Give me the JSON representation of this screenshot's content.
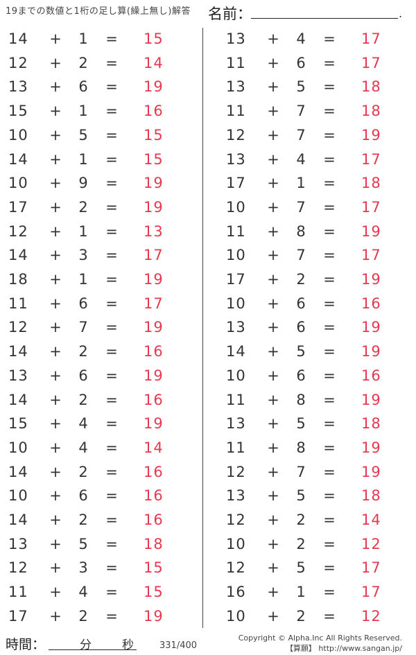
{
  "header": {
    "title": "19までの数値と1桁の足し算(繰上無し)解答",
    "name_label": "名前：",
    "name_dot": "."
  },
  "operator": "+",
  "equals": "=",
  "colors": {
    "answer": "#e8384f"
  },
  "left": [
    [
      "14",
      "1",
      "15"
    ],
    [
      "12",
      "2",
      "14"
    ],
    [
      "13",
      "6",
      "19"
    ],
    [
      "15",
      "1",
      "16"
    ],
    [
      "10",
      "5",
      "15"
    ],
    [
      "14",
      "1",
      "15"
    ],
    [
      "10",
      "9",
      "19"
    ],
    [
      "17",
      "2",
      "19"
    ],
    [
      "12",
      "1",
      "13"
    ],
    [
      "14",
      "3",
      "17"
    ],
    [
      "18",
      "1",
      "19"
    ],
    [
      "11",
      "6",
      "17"
    ],
    [
      "12",
      "7",
      "19"
    ],
    [
      "14",
      "2",
      "16"
    ],
    [
      "13",
      "6",
      "19"
    ],
    [
      "14",
      "2",
      "16"
    ],
    [
      "15",
      "4",
      "19"
    ],
    [
      "10",
      "4",
      "14"
    ],
    [
      "14",
      "2",
      "16"
    ],
    [
      "10",
      "6",
      "16"
    ],
    [
      "14",
      "2",
      "16"
    ],
    [
      "13",
      "5",
      "18"
    ],
    [
      "12",
      "3",
      "15"
    ],
    [
      "11",
      "4",
      "15"
    ],
    [
      "17",
      "2",
      "19"
    ]
  ],
  "right": [
    [
      "13",
      "4",
      "17"
    ],
    [
      "11",
      "6",
      "17"
    ],
    [
      "13",
      "5",
      "18"
    ],
    [
      "11",
      "7",
      "18"
    ],
    [
      "12",
      "7",
      "19"
    ],
    [
      "13",
      "4",
      "17"
    ],
    [
      "17",
      "1",
      "18"
    ],
    [
      "10",
      "7",
      "17"
    ],
    [
      "11",
      "8",
      "19"
    ],
    [
      "10",
      "7",
      "17"
    ],
    [
      "17",
      "2",
      "19"
    ],
    [
      "10",
      "6",
      "16"
    ],
    [
      "13",
      "6",
      "19"
    ],
    [
      "14",
      "5",
      "19"
    ],
    [
      "10",
      "6",
      "16"
    ],
    [
      "11",
      "8",
      "19"
    ],
    [
      "13",
      "5",
      "18"
    ],
    [
      "11",
      "8",
      "19"
    ],
    [
      "12",
      "7",
      "19"
    ],
    [
      "13",
      "5",
      "18"
    ],
    [
      "12",
      "2",
      "14"
    ],
    [
      "10",
      "2",
      "12"
    ],
    [
      "12",
      "5",
      "17"
    ],
    [
      "16",
      "1",
      "17"
    ],
    [
      "10",
      "2",
      "12"
    ]
  ],
  "footer": {
    "time_label": "時間：",
    "minutes_label": "分",
    "seconds_label": "秒",
    "page": "331/400",
    "copyright": "Copyright © Alpha.Inc All Rights Reserved.",
    "site": "【算願】 http://www.sangan.jp/"
  }
}
